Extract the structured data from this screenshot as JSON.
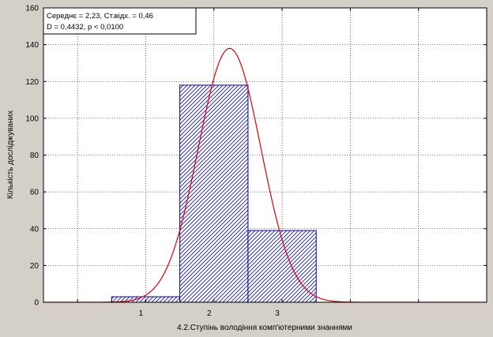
{
  "chart_data": {
    "type": "bar",
    "categories": [
      "1",
      "2",
      "3"
    ],
    "values": [
      3,
      118,
      39
    ],
    "xlabel": "4.2.Ступінь володіння комп'ютерними знаннями",
    "ylabel": "Кількість досліджуваних",
    "ylim": [
      0,
      160
    ],
    "yticks": [
      0,
      20,
      40,
      60,
      80,
      100,
      120,
      140,
      160
    ],
    "xlim": [
      -0.5,
      6
    ],
    "grid": true,
    "bar_fill": "#ffffff",
    "bar_hatch_color": "#1a1aa8",
    "bar_stroke": "#0000cc",
    "fit_curve": {
      "type": "normal",
      "mean": 2.23,
      "sd": 0.46,
      "peak": 138,
      "color": "#e00000"
    },
    "stats_box": {
      "line1": "Середнє = 2,23, Ст.відх. = 0,46",
      "line2": "D = 0,4432, p < 0,0100"
    }
  }
}
